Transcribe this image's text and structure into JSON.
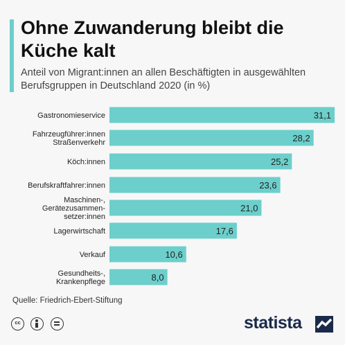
{
  "title": "Ohne Zuwanderung bleibt die Küche kalt",
  "subtitle": "Anteil von Migrant:innen an allen Beschäftigten in ausgewählten Berufsgruppen in Deutschland 2020 (in %)",
  "source": "Quelle: Friedrich-Ebert-Stiftung",
  "brand": "statista",
  "license_icons": [
    "cc-icon",
    "by-icon",
    "nd-icon"
  ],
  "colors": {
    "bar": "#6ccfcb",
    "accent": "#6ccfcb",
    "text": "#222222",
    "background": "#f7f7f7"
  },
  "chart_data": {
    "type": "bar",
    "orientation": "horizontal",
    "categories": [
      [
        "Gastronomieservice"
      ],
      [
        "Fahrzeugführer:innen",
        "Straßenverkehr"
      ],
      [
        "Köch:innen"
      ],
      [
        "Berufskraftfahrer:innen"
      ],
      [
        "Maschinen-,",
        "Gerätezusammen-",
        "setzer:innen"
      ],
      [
        "Lagerwirtschaft"
      ],
      [
        "Verkauf"
      ],
      [
        "Gesundheits-,",
        "Krankenpflege"
      ]
    ],
    "values": [
      31.1,
      28.2,
      25.2,
      23.6,
      21.0,
      17.6,
      10.6,
      8.0
    ],
    "value_labels": [
      "31,1",
      "28,2",
      "25,2",
      "23,6",
      "21,0",
      "17,6",
      "10,6",
      "8,0"
    ],
    "xlim": [
      0,
      31.1
    ],
    "grid": false,
    "legend": "none"
  }
}
